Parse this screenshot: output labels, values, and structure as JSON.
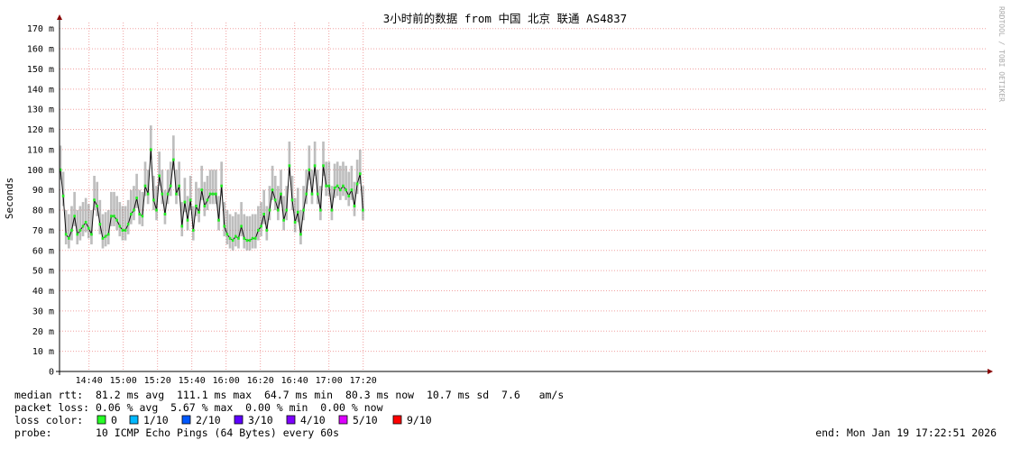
{
  "chart_data": {
    "type": "smokeping",
    "title": "3小时前的数据 from 中国 北京 联通 AS4837",
    "y_label": "Seconds",
    "side_note": "RRDTOOL / TOBI OETIKER",
    "color": "#22ee22",
    "smoke_color": "#888888",
    "grid": true,
    "xlim": [
      862.8,
      1403.3
    ],
    "ylim": [
      0,
      0.173
    ],
    "xticks": [
      {
        "value": 880,
        "label": "14:40"
      },
      {
        "value": 900,
        "label": "15:00"
      },
      {
        "value": 920,
        "label": "15:20"
      },
      {
        "value": 940,
        "label": "15:40"
      },
      {
        "value": 960,
        "label": "16:00"
      },
      {
        "value": 980,
        "label": "16:20"
      },
      {
        "value": 1000,
        "label": "16:40"
      },
      {
        "value": 1020,
        "label": "17:00"
      },
      {
        "value": 1040,
        "label": "17:20"
      }
    ],
    "yticks": [
      0,
      {
        "value": 0.01,
        "label": "10 m"
      },
      {
        "value": 0.02,
        "label": "20 m"
      },
      {
        "value": 0.03,
        "label": "30 m"
      },
      {
        "value": 0.04,
        "label": "40 m"
      },
      {
        "value": 0.05,
        "label": "50 m"
      },
      {
        "value": 0.06,
        "label": "60 m"
      },
      {
        "value": 0.07,
        "label": "70 m"
      },
      {
        "value": 0.08,
        "label": "80 m"
      },
      {
        "value": 0.09,
        "label": "90 m"
      },
      {
        "value": 0.1,
        "label": "100 m"
      },
      {
        "value": 0.11,
        "label": "110 m"
      },
      {
        "value": 0.12,
        "label": "120 m"
      },
      {
        "value": 0.13,
        "label": "130 m"
      },
      {
        "value": 0.14,
        "label": "140 m"
      },
      {
        "value": 0.15,
        "label": "150 m"
      },
      {
        "value": 0.16,
        "label": "160 m"
      },
      {
        "value": 0.17,
        "label": "170 m"
      }
    ],
    "x": [
      863.3,
      864.95,
      866.6,
      868.25,
      869.9,
      871.55,
      873.2,
      874.85,
      876.5,
      878.15,
      879.8,
      881.45,
      883.1,
      884.75,
      886.4,
      888.05,
      889.7,
      891.35,
      893,
      894.65,
      896.3,
      897.95,
      899.6,
      901.25,
      902.9,
      904.55,
      906.2,
      907.85,
      909.5,
      911.15,
      912.8,
      914.45,
      916.1,
      917.75,
      919.4,
      921.05,
      922.7,
      924.35,
      926,
      927.65,
      929.3,
      930.95,
      932.6,
      934.25,
      935.9,
      937.55,
      939.2,
      940.85,
      942.5,
      944.15,
      945.8,
      947.45,
      949.1,
      950.75,
      952.4,
      954.05,
      955.7,
      957.35,
      959,
      960.65,
      962.3,
      963.95,
      965.6,
      967.25,
      968.9,
      970.55,
      972.2,
      973.85,
      975.5,
      977.15,
      978.8,
      980.45,
      982.1,
      983.75,
      985.4,
      987.05,
      988.7,
      990.35,
      992,
      993.65,
      995.3,
      996.95,
      998.6,
      1000.25,
      1001.9,
      1003.55,
      1005.2,
      1006.85,
      1008.5,
      1010.15,
      1011.8,
      1013.45,
      1015.1,
      1016.75,
      1018.4,
      1020.05,
      1021.7,
      1023.35,
      1025,
      1026.65,
      1028.3,
      1029.95,
      1031.6,
      1033.25,
      1034.9,
      1036.55,
      1038.2,
      1039.85
    ],
    "values": [
      0.1,
      0.087,
      0.068,
      0.066,
      0.07,
      0.077,
      0.068,
      0.07,
      0.072,
      0.074,
      0.071,
      0.068,
      0.085,
      0.082,
      0.073,
      0.066,
      0.067,
      0.068,
      0.077,
      0.077,
      0.075,
      0.072,
      0.07,
      0.07,
      0.073,
      0.078,
      0.08,
      0.086,
      0.078,
      0.077,
      0.092,
      0.088,
      0.11,
      0.085,
      0.08,
      0.097,
      0.088,
      0.078,
      0.088,
      0.092,
      0.105,
      0.088,
      0.092,
      0.072,
      0.084,
      0.075,
      0.085,
      0.07,
      0.082,
      0.079,
      0.09,
      0.082,
      0.085,
      0.088,
      0.088,
      0.088,
      0.075,
      0.092,
      0.072,
      0.068,
      0.066,
      0.065,
      0.067,
      0.066,
      0.072,
      0.066,
      0.065,
      0.065,
      0.066,
      0.066,
      0.07,
      0.072,
      0.078,
      0.07,
      0.08,
      0.09,
      0.085,
      0.08,
      0.088,
      0.075,
      0.08,
      0.102,
      0.085,
      0.074,
      0.079,
      0.068,
      0.08,
      0.088,
      0.1,
      0.088,
      0.102,
      0.088,
      0.08,
      0.102,
      0.092,
      0.092,
      0.08,
      0.091,
      0.092,
      0.09,
      0.092,
      0.09,
      0.087,
      0.09,
      0.082,
      0.093,
      0.098,
      0.08
    ],
    "high": [
      0.112,
      0.099,
      0.08,
      0.078,
      0.082,
      0.089,
      0.08,
      0.082,
      0.084,
      0.086,
      0.083,
      0.08,
      0.097,
      0.094,
      0.085,
      0.078,
      0.079,
      0.08,
      0.089,
      0.089,
      0.087,
      0.084,
      0.082,
      0.082,
      0.085,
      0.09,
      0.092,
      0.098,
      0.09,
      0.089,
      0.104,
      0.1,
      0.122,
      0.097,
      0.092,
      0.109,
      0.1,
      0.09,
      0.1,
      0.104,
      0.117,
      0.1,
      0.104,
      0.084,
      0.096,
      0.087,
      0.097,
      0.082,
      0.094,
      0.091,
      0.102,
      0.094,
      0.097,
      0.1,
      0.1,
      0.1,
      0.087,
      0.104,
      0.084,
      0.08,
      0.078,
      0.077,
      0.079,
      0.078,
      0.084,
      0.078,
      0.077,
      0.077,
      0.078,
      0.078,
      0.082,
      0.084,
      0.09,
      0.082,
      0.092,
      0.102,
      0.097,
      0.092,
      0.1,
      0.087,
      0.092,
      0.114,
      0.097,
      0.086,
      0.091,
      0.08,
      0.092,
      0.1,
      0.112,
      0.1,
      0.114,
      0.1,
      0.092,
      0.114,
      0.104,
      0.104,
      0.092,
      0.103,
      0.104,
      0.102,
      0.104,
      0.102,
      0.099,
      0.102,
      0.094,
      0.105,
      0.11,
      0.092
    ],
    "low": [
      0.095,
      0.082,
      0.063,
      0.061,
      0.065,
      0.072,
      0.063,
      0.065,
      0.067,
      0.069,
      0.066,
      0.063,
      0.08,
      0.077,
      0.068,
      0.061,
      0.062,
      0.063,
      0.072,
      0.072,
      0.07,
      0.067,
      0.065,
      0.065,
      0.068,
      0.073,
      0.075,
      0.081,
      0.073,
      0.072,
      0.087,
      0.083,
      0.105,
      0.08,
      0.075,
      0.092,
      0.083,
      0.073,
      0.083,
      0.087,
      0.1,
      0.083,
      0.087,
      0.067,
      0.079,
      0.07,
      0.08,
      0.065,
      0.077,
      0.074,
      0.085,
      0.077,
      0.08,
      0.083,
      0.083,
      0.083,
      0.07,
      0.087,
      0.067,
      0.063,
      0.061,
      0.06,
      0.062,
      0.061,
      0.067,
      0.061,
      0.06,
      0.06,
      0.061,
      0.061,
      0.065,
      0.067,
      0.073,
      0.065,
      0.075,
      0.085,
      0.08,
      0.075,
      0.083,
      0.07,
      0.075,
      0.097,
      0.08,
      0.069,
      0.074,
      0.063,
      0.075,
      0.083,
      0.095,
      0.083,
      0.097,
      0.083,
      0.075,
      0.097,
      0.087,
      0.087,
      0.075,
      0.086,
      0.087,
      0.085,
      0.087,
      0.085,
      0.082,
      0.085,
      0.077,
      0.088,
      0.093,
      0.075
    ],
    "stats": [
      "median rtt:  81.2 ms avg  111.1 ms max  64.7 ms min  80.3 ms now  10.7 ms sd  7.6   am/s",
      "packet loss: 0.06 % avg  5.67 % max  0.00 % min  0.00 % now"
    ],
    "loss_color_label": "loss color:",
    "loss_colors": [
      {
        "label": "0",
        "color": "#26ff26"
      },
      {
        "label": "1/10",
        "color": "#00b8ff"
      },
      {
        "label": "2/10",
        "color": "#0059ff"
      },
      {
        "label": "3/10",
        "color": "#5e00ff"
      },
      {
        "label": "4/10",
        "color": "#7e00ff"
      },
      {
        "label": "5/10",
        "color": "#dd00ff"
      },
      {
        "label": "9/10",
        "color": "#ff0000"
      }
    ],
    "probe": "probe:       10 ICMP Echo Pings (64 Bytes) every 60s",
    "end": "end: Mon Jan 19 17:22:51 2026"
  }
}
